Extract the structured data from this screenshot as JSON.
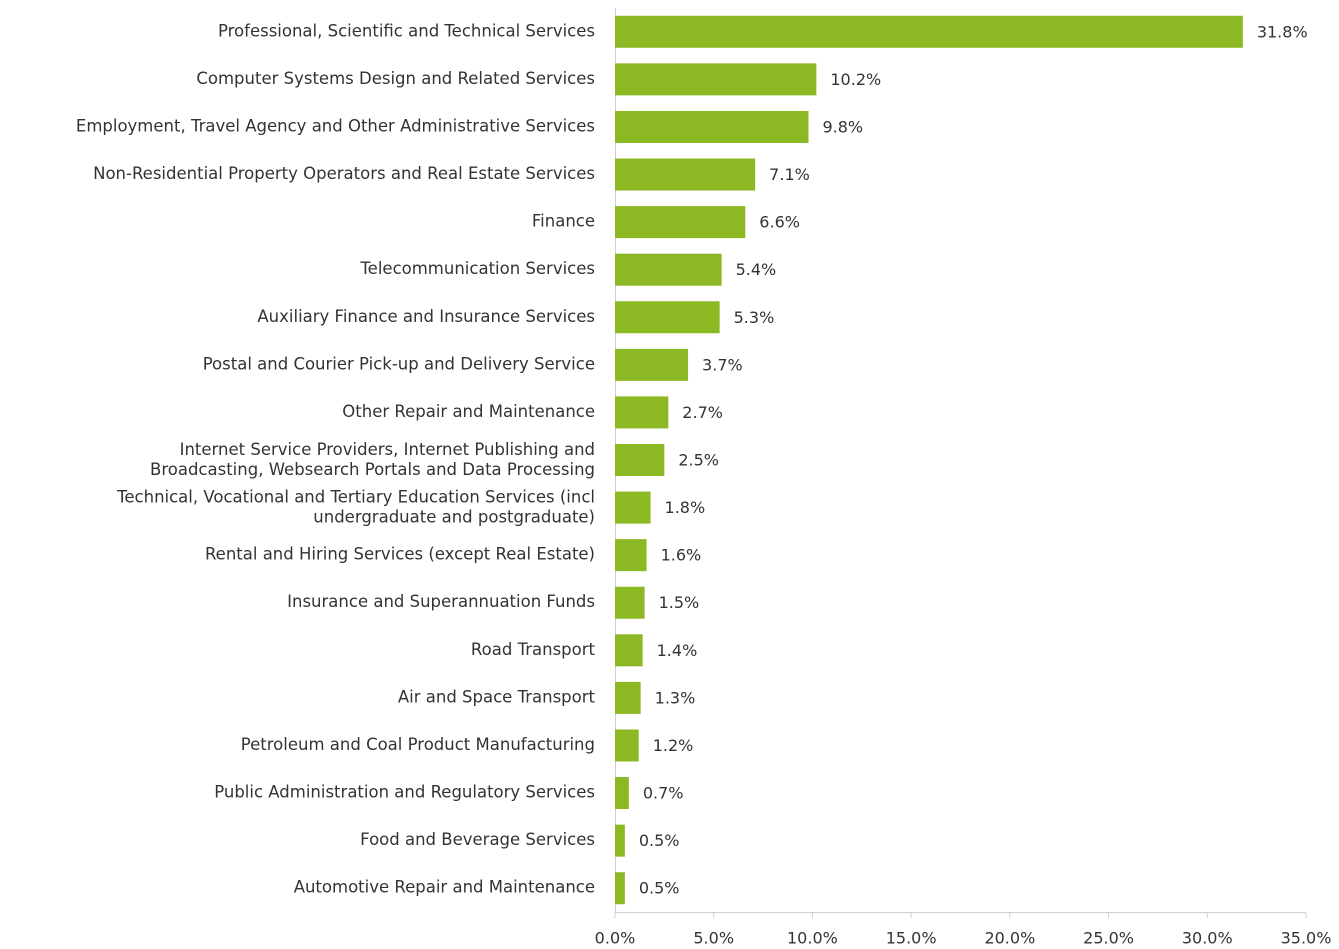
{
  "chart_data": {
    "type": "hbar",
    "categories": [
      "Professional, Scientific and Technical Services",
      "Computer Systems Design and Related Services",
      "Employment, Travel Agency and Other Administrative Services",
      "Non-Residential Property Operators and Real Estate Services",
      "Finance",
      "Telecommunication Services",
      "Auxiliary Finance and Insurance Services",
      "Postal and Courier Pick-up and Delivery Service",
      "Other Repair and Maintenance",
      "Internet Service Providers, Internet Publishing and\nBroadcasting, Websearch Portals and Data Processing",
      "Technical, Vocational and Tertiary Education Services (incl\nundergraduate and postgraduate)",
      "Rental and Hiring Services (except Real Estate)",
      "Insurance and Superannuation Funds",
      "Road Transport",
      "Air and Space Transport",
      "Petroleum and Coal Product Manufacturing",
      "Public Administration and Regulatory Services",
      "Food and Beverage Services",
      "Automotive Repair and Maintenance"
    ],
    "values": [
      31.8,
      10.2,
      9.8,
      7.1,
      6.6,
      5.4,
      5.3,
      3.7,
      2.7,
      2.5,
      1.8,
      1.6,
      1.5,
      1.4,
      1.3,
      1.2,
      0.7,
      0.5,
      0.5
    ],
    "value_labels": [
      "31.8%",
      "10.2%",
      "9.8%",
      "7.1%",
      "6.6%",
      "5.4%",
      "5.3%",
      "3.7%",
      "2.7%",
      "2.5%",
      "1.8%",
      "1.6%",
      "1.5%",
      "1.4%",
      "1.3%",
      "1.2%",
      "0.7%",
      "0.5%",
      "0.5%"
    ],
    "color": "#8cb823",
    "xlim": [
      0,
      35
    ],
    "xticks": [
      {
        "value": 0,
        "label": "0.0%"
      },
      {
        "value": 5,
        "label": "5.0%"
      },
      {
        "value": 10,
        "label": "10.0%"
      },
      {
        "value": 15,
        "label": "15.0%"
      },
      {
        "value": 20,
        "label": "20.0%"
      },
      {
        "value": 25,
        "label": "25.0%"
      },
      {
        "value": 30,
        "label": "30.0%"
      },
      {
        "value": 35,
        "label": "35.0%"
      }
    ],
    "grid": false
  }
}
